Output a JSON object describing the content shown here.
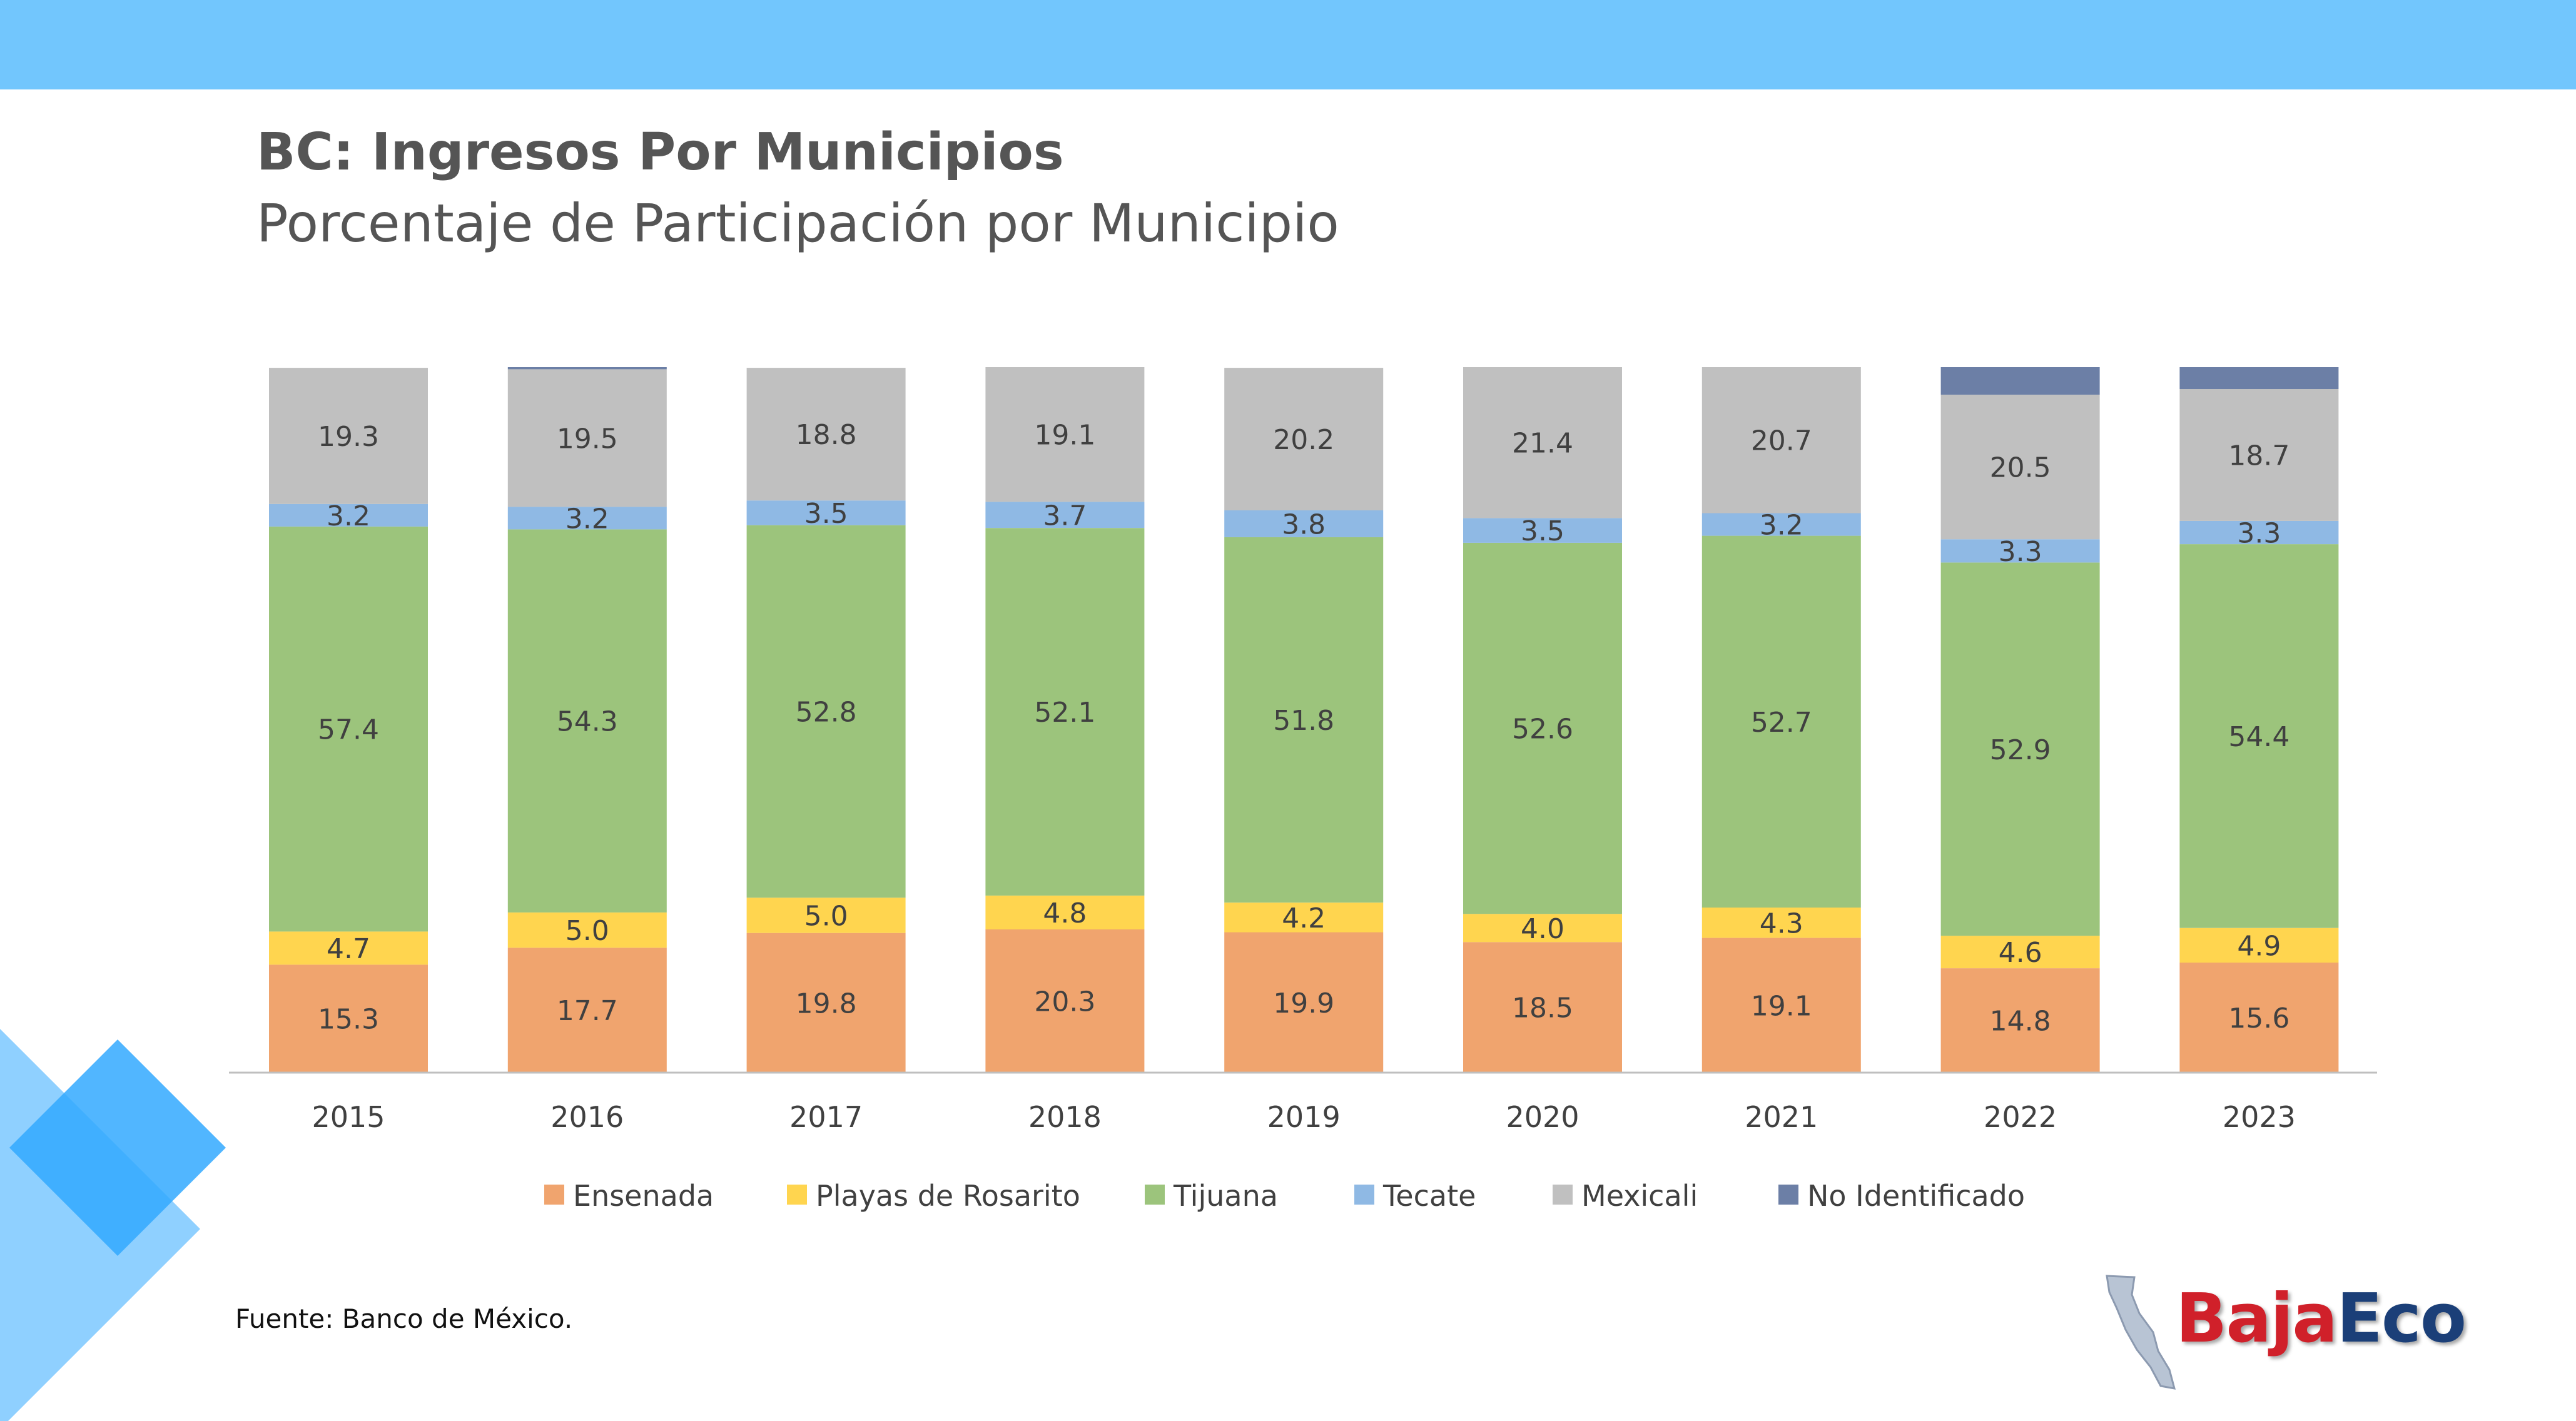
{
  "header": {
    "title": "BC: Ingresos Por Municipios",
    "subtitle": "Porcentaje de Participación por Municipio"
  },
  "footer": {
    "source": "Fuente: Banco de México."
  },
  "logo": {
    "baja": "Baja",
    "eco": "Eco"
  },
  "colors": {
    "top_band": "#72C6FD",
    "decoration": "#33A9FF",
    "axis_line": "#BFBFBF",
    "label_text": "#404040"
  },
  "chart_data": {
    "type": "bar",
    "stacked": true,
    "title": "",
    "xlabel": "",
    "ylabel": "",
    "ylim": [
      0,
      100
    ],
    "grid": false,
    "legend_position": "bottom",
    "categories": [
      "2015",
      "2016",
      "2017",
      "2018",
      "2019",
      "2020",
      "2021",
      "2022",
      "2023"
    ],
    "series": [
      {
        "name": "Ensenada",
        "color": "#F0A46E",
        "values": [
          15.3,
          17.7,
          19.8,
          20.3,
          19.9,
          18.5,
          19.1,
          14.8,
          15.6
        ],
        "labeled": true
      },
      {
        "name": "Playas de Rosarito",
        "color": "#FFD54F",
        "values": [
          4.7,
          5.0,
          5.0,
          4.8,
          4.2,
          4.0,
          4.3,
          4.6,
          4.9
        ],
        "labeled": true
      },
      {
        "name": "Tijuana",
        "color": "#9CC47C",
        "values": [
          57.4,
          54.3,
          52.8,
          52.1,
          51.8,
          52.6,
          52.7,
          52.9,
          54.4
        ],
        "labeled": true
      },
      {
        "name": "Tecate",
        "color": "#8FB9E4",
        "values": [
          3.2,
          3.2,
          3.5,
          3.7,
          3.8,
          3.5,
          3.2,
          3.3,
          3.3
        ],
        "labeled": true
      },
      {
        "name": "Mexicali",
        "color": "#C0C0C0",
        "values": [
          19.3,
          19.5,
          18.8,
          19.1,
          20.2,
          21.4,
          20.7,
          20.5,
          18.7
        ],
        "labeled": true
      },
      {
        "name": "No Identificado",
        "color": "#6C7FA6",
        "values": [
          0.0,
          0.3,
          0.0,
          0.0,
          0.0,
          0.0,
          0.0,
          3.9,
          3.1
        ],
        "labeled": false
      }
    ]
  }
}
